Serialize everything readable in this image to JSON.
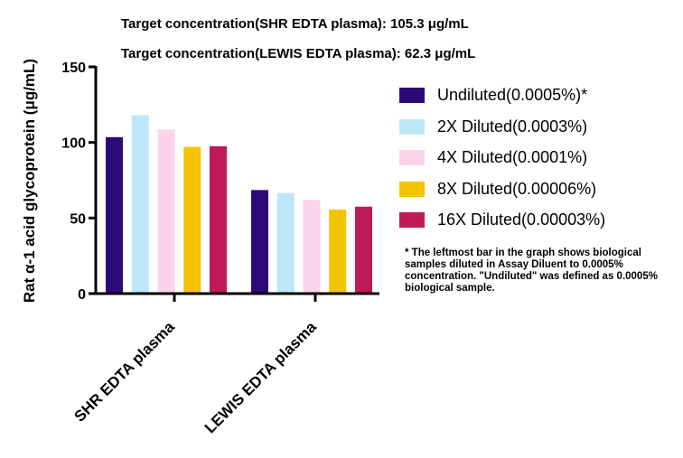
{
  "subtitles": [
    "Target concentration(SHR EDTA plasma): 105.3 μg/mL",
    "Target concentration(LEWIS EDTA plasma): 62.3 μg/mL"
  ],
  "footnote": "* The leftmost bar in the graph shows biological samples diluted in Assay Diluent to 0.0005% concentration. \"Undiluted\" was defined as 0.0005% biological sample.",
  "chart_data": {
    "type": "bar",
    "title": "",
    "xlabel": "",
    "ylabel": "Rat α-1 acid glycoprotein (μg/mL)",
    "ylim": [
      0,
      150
    ],
    "yticks": [
      0,
      50,
      100,
      150
    ],
    "grid": false,
    "legend_position": "right",
    "categories": [
      "SHR EDTA plasma",
      "LEWIS EDTA plasma"
    ],
    "series": [
      {
        "name": "Undiluted(0.0005%)*",
        "color": "#2d0a78",
        "values": [
          103.5,
          68.5
        ]
      },
      {
        "name": "2X Diluted(0.0003%)",
        "color": "#bde6f8",
        "values": [
          118,
          66.5
        ]
      },
      {
        "name": "4X Diluted(0.0001%)",
        "color": "#fbd4ea",
        "values": [
          108.5,
          62
        ]
      },
      {
        "name": "8X Diluted(0.00006%)",
        "color": "#f5c400",
        "values": [
          97,
          55.5
        ]
      },
      {
        "name": "16X Diluted(0.00003%)",
        "color": "#c01a56",
        "values": [
          97.5,
          57.5
        ]
      }
    ]
  }
}
